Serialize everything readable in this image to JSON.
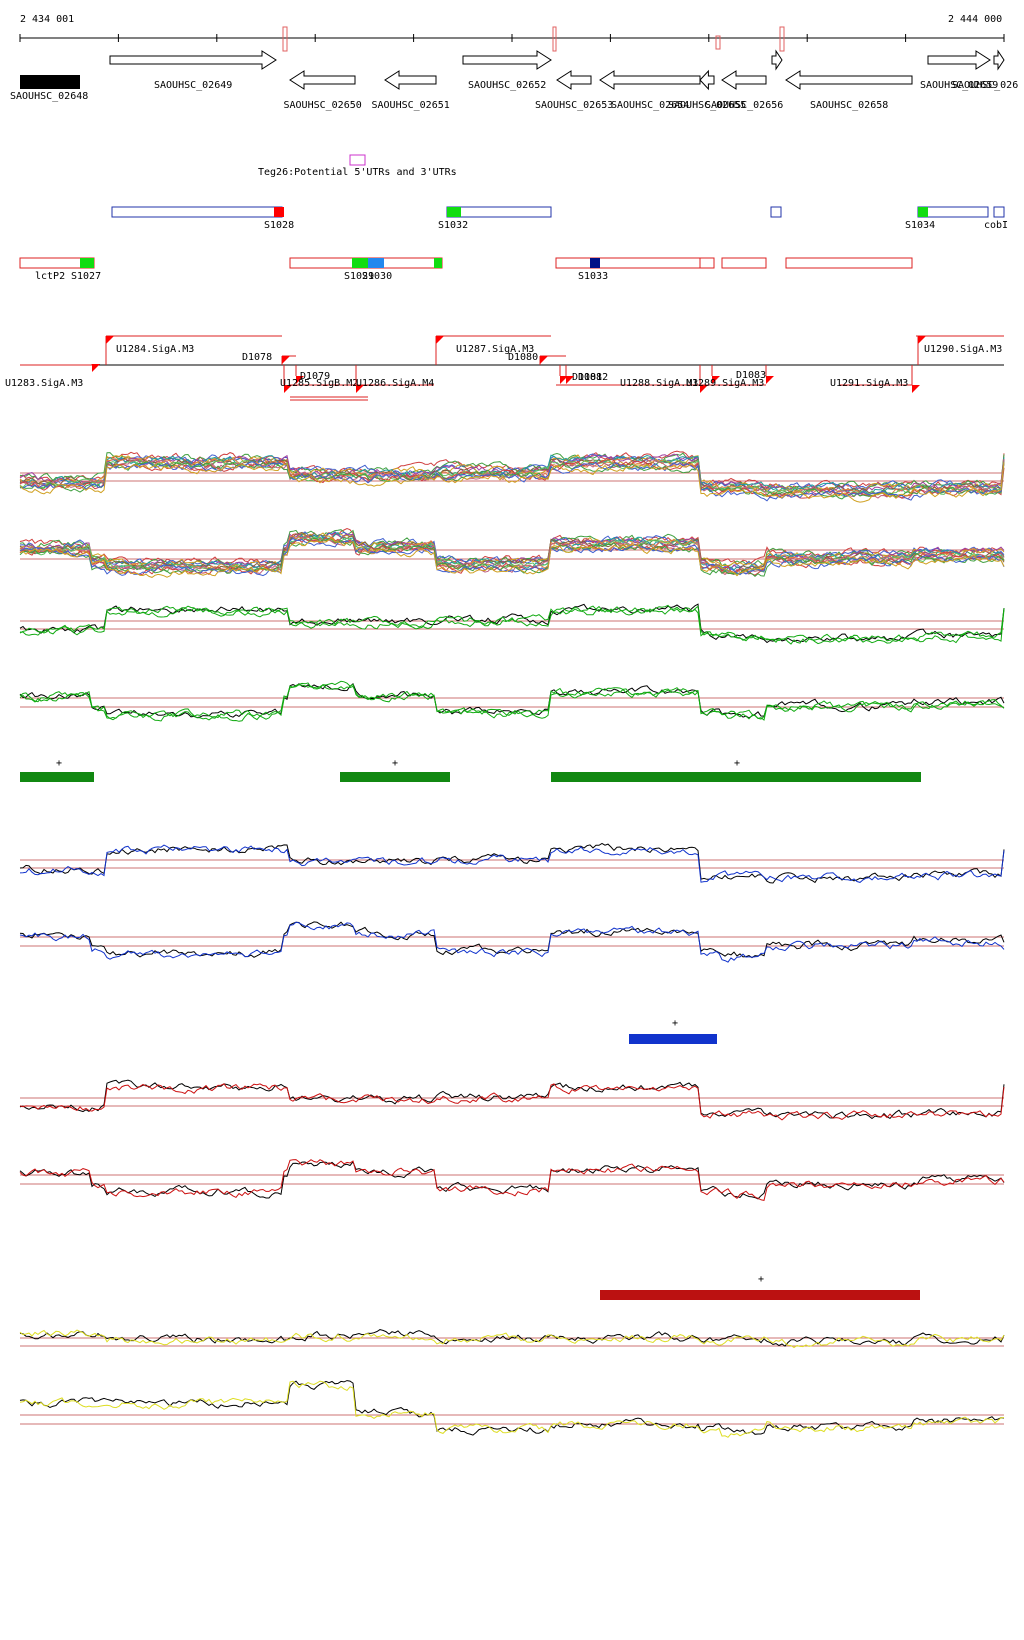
{
  "coords": {
    "start": "2 434 001",
    "end": "2 444 000"
  },
  "genes": [
    {
      "id": "SAOUHSC_02648",
      "x1": 20,
      "x2": 80,
      "dir": "box",
      "row": 0,
      "fill": "#000000"
    },
    {
      "id": "SAOUHSC_02649",
      "x1": 110,
      "x2": 276,
      "dir": "+",
      "row": 0
    },
    {
      "id": "SAOUHSC_02650",
      "x1": 290,
      "x2": 355,
      "dir": "-",
      "row": 1
    },
    {
      "id": "SAOUHSC_02651",
      "x1": 385,
      "x2": 436,
      "dir": "-",
      "row": 1
    },
    {
      "id": "SAOUHSC_02652",
      "x1": 463,
      "x2": 551,
      "dir": "+",
      "row": 0
    },
    {
      "id": "SAOUHSC_02653",
      "x1": 557,
      "x2": 591,
      "dir": "-",
      "row": 1
    },
    {
      "id": "SAOUHSC_02654",
      "x1": 600,
      "x2": 700,
      "dir": "-",
      "row": 1
    },
    {
      "id": "SAOUHSC_02655",
      "x1": 700,
      "x2": 714,
      "dir": "-",
      "row": 1
    },
    {
      "id": "SAOUHSC_02656",
      "x1": 722,
      "x2": 766,
      "dir": "-",
      "row": 1
    },
    {
      "id": "SAOUHSC_02657",
      "x1": 772,
      "x2": 782,
      "dir": "+",
      "row": 0,
      "nolabel": true
    },
    {
      "id": "SAOUHSC_02658",
      "x1": 786,
      "x2": 912,
      "dir": "-",
      "row": 1
    },
    {
      "id": "SAOUHSC_02659",
      "x1": 928,
      "x2": 990,
      "dir": "+",
      "row": 0
    },
    {
      "id": "SAOUHSC_026",
      "x1": 994,
      "x2": 1004,
      "dir": "+",
      "row": 0
    }
  ],
  "labels": {
    "teg26": "Teg26:Potential 5'UTRs and 3'UTRs",
    "s_blue": [
      "S1028",
      "S1032",
      "S1034",
      "cobI"
    ],
    "s_red": [
      "lctP2",
      "S1027",
      "S1029",
      "S1030",
      "S1033"
    ],
    "tss": [
      "U1283.SigA.M3",
      "U1284.SigA.M3",
      "D1078",
      "D1079",
      "U1285.SigB.M2",
      "U1286.SigA.M4",
      "U1287.SigA.M3",
      "D1080",
      "D1081",
      "D1082",
      "U1288.SigA.M3",
      "U1289.SigA.M3",
      "D1083",
      "U1291.SigA.M3",
      "U1290.SigA.M3"
    ]
  },
  "segments": [
    {
      "color": "#118811",
      "sign": "+"
    },
    {
      "color": "#118811",
      "sign": "+"
    },
    {
      "color": "#118811",
      "sign": "+"
    },
    {
      "color": "#1133cc",
      "sign": "+"
    },
    {
      "color": "#bb1111",
      "sign": "+"
    }
  ],
  "tracks": {
    "multi": "#multi",
    "green": "#11aa11",
    "blue": "#1133cc",
    "red": "#cc1111",
    "yellow": "#dddd22"
  }
}
